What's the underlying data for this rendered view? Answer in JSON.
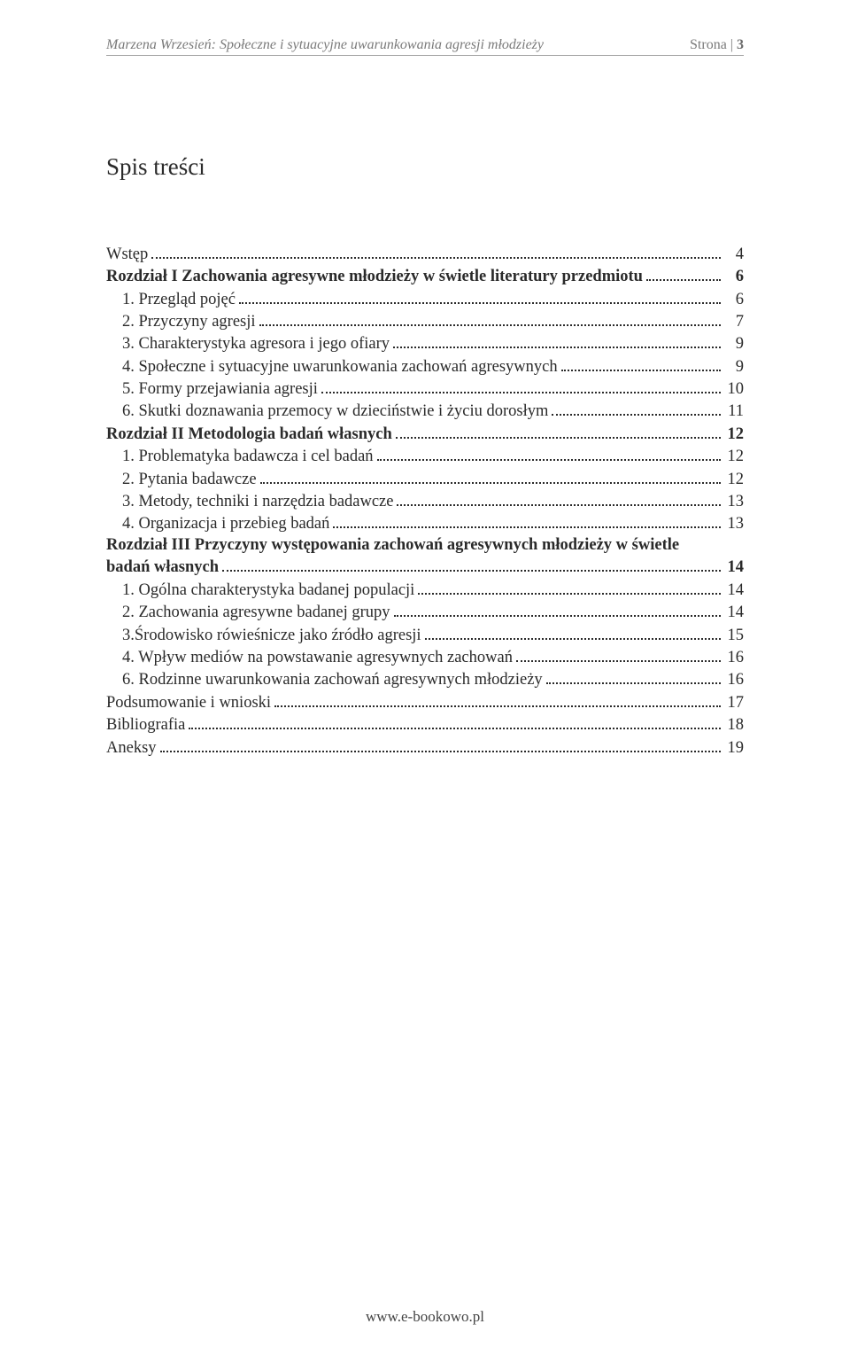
{
  "header": {
    "author": "Marzena Wrzesień:",
    "title_italic": "Społeczne i sytuacyjne uwarunkowania agresji młodzieży",
    "page_word": "Strona",
    "page_num": "3"
  },
  "toc_title": "Spis treści",
  "entries": [
    {
      "label": "Wstęp",
      "page": "4",
      "bold": false,
      "indent": 0
    },
    {
      "label": "Rozdział I Zachowania agresywne młodzieży w świetle literatury przedmiotu",
      "page": "6",
      "bold": true,
      "indent": 0
    },
    {
      "label": "1. Przegląd pojęć",
      "page": "6",
      "bold": false,
      "indent": 1
    },
    {
      "label": "2. Przyczyny agresji",
      "page": "7",
      "bold": false,
      "indent": 1
    },
    {
      "label": "3. Charakterystyka agresora i jego ofiary",
      "page": "9",
      "bold": false,
      "indent": 1
    },
    {
      "label": "4. Społeczne i sytuacyjne uwarunkowania zachowań agresywnych",
      "page": "9",
      "bold": false,
      "indent": 1
    },
    {
      "label": "5. Formy przejawiania agresji",
      "page": "10",
      "bold": false,
      "indent": 1
    },
    {
      "label": "6. Skutki doznawania przemocy w dzieciństwie i życiu dorosłym",
      "page": "11",
      "bold": false,
      "indent": 1
    },
    {
      "label": "Rozdział II  Metodologia badań własnych",
      "page": "12",
      "bold": true,
      "indent": 0
    },
    {
      "label": "1. Problematyka badawcza i cel badań",
      "page": "12",
      "bold": false,
      "indent": 1
    },
    {
      "label": "2. Pytania badawcze",
      "page": "12",
      "bold": false,
      "indent": 1
    },
    {
      "label": "3. Metody, techniki i narzędzia badawcze",
      "page": "13",
      "bold": false,
      "indent": 1
    },
    {
      "label": "4. Organizacja i przebieg badań",
      "page": "13",
      "bold": false,
      "indent": 1
    },
    {
      "label_line1": "Rozdział III  Przyczyny występowania zachowań agresywnych młodzieży w świetle",
      "label_line2": "badań własnych",
      "page": "14",
      "bold": true,
      "indent": 0,
      "multiline": true
    },
    {
      "label": "1. Ogólna charakterystyka badanej populacji",
      "page": "14",
      "bold": false,
      "indent": 1
    },
    {
      "label": "2. Zachowania agresywne badanej grupy",
      "page": "14",
      "bold": false,
      "indent": 1
    },
    {
      "label": "3.Środowisko rówieśnicze jako źródło agresji",
      "page": "15",
      "bold": false,
      "indent": 1
    },
    {
      "label": "4. Wpływ mediów na powstawanie agresywnych zachowań",
      "page": "16",
      "bold": false,
      "indent": 1
    },
    {
      "label": "6. Rodzinne uwarunkowania zachowań agresywnych młodzieży",
      "page": "16",
      "bold": false,
      "indent": 1
    },
    {
      "label": "Podsumowanie i wnioski",
      "page": "17",
      "bold": false,
      "indent": 0
    },
    {
      "label": "Bibliografia",
      "page": "18",
      "bold": false,
      "indent": 0
    },
    {
      "label": "Aneksy",
      "page": "19",
      "bold": false,
      "indent": 0
    }
  ],
  "footer": "www.e-bookowo.pl",
  "colors": {
    "text": "#2a2a2a",
    "header_text": "#7a7a7a",
    "header_rule": "#a0a0a0",
    "background": "#ffffff"
  },
  "fonts": {
    "body_family": "Times New Roman",
    "toc_fontsize_pt": 14,
    "title_fontsize_pt": 20,
    "header_fontsize_pt": 12
  }
}
